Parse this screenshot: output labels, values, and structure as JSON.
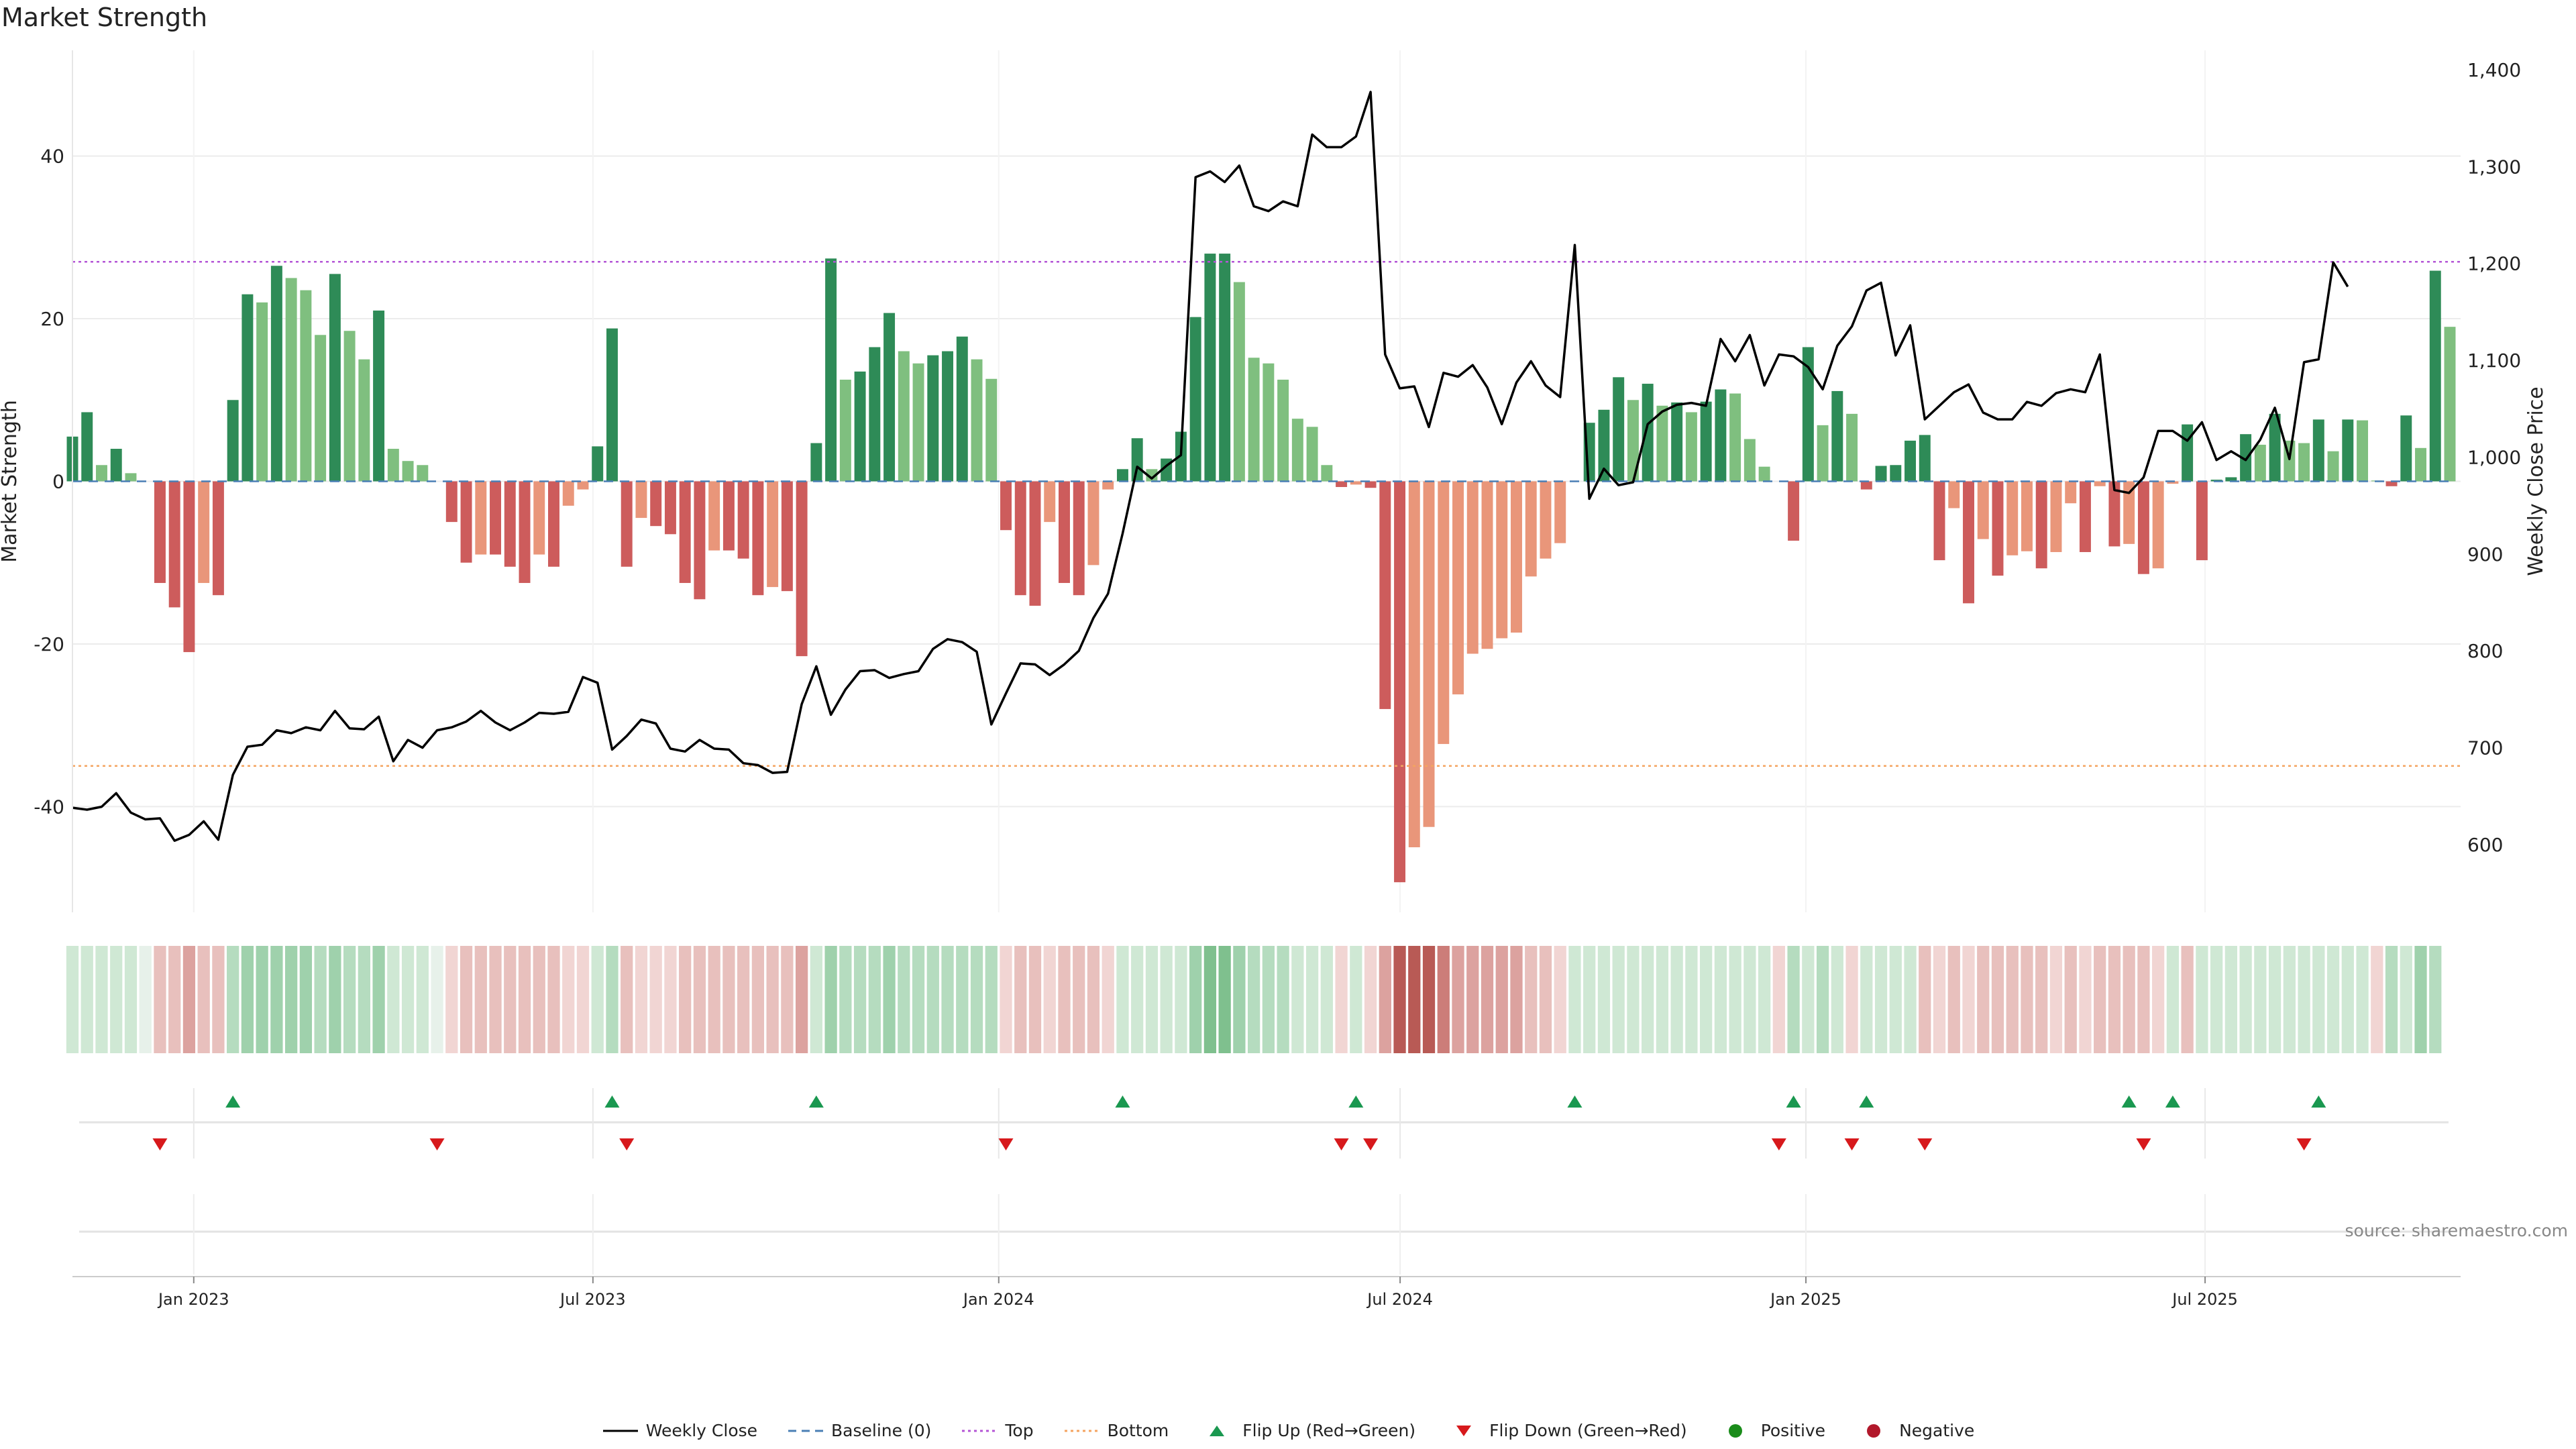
{
  "title": "Market Strength",
  "source": "source: sharemaestro.com",
  "colors": {
    "pos_strong": "#2e8b57",
    "pos_weak": "#7fbf7f",
    "neg_strong": "#cd5c5c",
    "neg_weak": "#e9967a",
    "price_line": "#000000",
    "baseline": "#4a7fb5",
    "top": "#b455d6",
    "bottom": "#f4a460",
    "flip_up": "#1a9850",
    "flip_down": "#d7191c",
    "positive_dot": "#1a8c1a",
    "negative_dot": "#b2182b"
  },
  "legend": [
    {
      "label": "Weekly Close",
      "kind": "line",
      "color": "#000000",
      "icon": "solid-line"
    },
    {
      "label": "Baseline (0)",
      "kind": "dash",
      "color": "#4a7fb5",
      "icon": "dashed-line"
    },
    {
      "label": "Top",
      "kind": "dot",
      "color": "#b455d6",
      "icon": "dotted-line"
    },
    {
      "label": "Bottom",
      "kind": "dot",
      "color": "#f4a460",
      "icon": "dotted-line"
    },
    {
      "label": "Flip Up (Red→Green)",
      "kind": "up",
      "color": "#1a9850",
      "icon": "triangle-up-icon"
    },
    {
      "label": "Flip Down (Green→Red)",
      "kind": "down",
      "color": "#d7191c",
      "icon": "triangle-down-icon"
    },
    {
      "label": "Positive",
      "kind": "circle",
      "color": "#1a8c1a",
      "icon": "circle-icon"
    },
    {
      "label": "Negative",
      "kind": "circle",
      "color": "#b2182b",
      "icon": "circle-icon"
    }
  ],
  "chart_data": {
    "type": "bar",
    "start_date": "2022-11-07",
    "end_date": "2025-10-20",
    "ylabel": "Market Strength",
    "y2label": "Weekly Close Price",
    "ylim": [
      -53,
      53
    ],
    "y2lim": [
      530,
      1420
    ],
    "yticks": [
      -40,
      -20,
      0,
      20,
      40
    ],
    "y2ticks": [
      600,
      700,
      800,
      900,
      1000,
      1100,
      1200,
      1300,
      1400
    ],
    "y2ticklabels": [
      "600",
      "700",
      "800",
      "900",
      "1,000",
      "1,100",
      "1,200",
      "1,300",
      "1,400"
    ],
    "xticks": [
      "Jan 2023",
      "Jul 2023",
      "Jan 2024",
      "Jul 2024",
      "Jan 2025",
      "Jul 2025"
    ],
    "xtick_dates": [
      "2023-01-01",
      "2023-07-01",
      "2024-01-01",
      "2024-07-01",
      "2025-01-01",
      "2025-07-01"
    ],
    "top_line": 27,
    "bottom_line": -35,
    "grid": true,
    "legend_position": "bottom-center",
    "strength": [
      5.5,
      8.5,
      2,
      4,
      1,
      0,
      -12.5,
      -15.5,
      -21,
      -12.5,
      -14,
      10,
      23,
      22,
      26.5,
      25,
      23.5,
      18,
      25.5,
      18.5,
      15,
      21,
      4,
      2.5,
      2,
      0,
      -5,
      -10,
      -9,
      -9,
      -10.5,
      -12.5,
      -9,
      -10.5,
      -3,
      -1,
      4.3,
      18.8,
      -10.5,
      -4.5,
      -5.5,
      -6.5,
      -12.5,
      -14.5,
      -8.5,
      -8.5,
      -9.5,
      -14,
      -13,
      -13.5,
      -21.5,
      4.7,
      27.4,
      12.5,
      13.5,
      16.5,
      20.7,
      16,
      14.5,
      15.5,
      16,
      17.8,
      15,
      12.6,
      -6,
      -14,
      -15.3,
      -5,
      -12.5,
      -14,
      -10.3,
      -1,
      1.5,
      5.3,
      1.5,
      2.8,
      6.1,
      20.2,
      28,
      28,
      24.5,
      15.2,
      14.5,
      12.5,
      7.7,
      6.7,
      2,
      -0.7,
      -0.4,
      -0.8,
      -28,
      -49.3,
      -45,
      -42.5,
      -32.3,
      -26.2,
      -21.2,
      -20.6,
      -19.3,
      -18.6,
      -11.7,
      -9.5,
      -7.6,
      0,
      7.2,
      8.8,
      12.8,
      10,
      12,
      9.3,
      9.7,
      8.5,
      9.8,
      11.3,
      10.8,
      5.2,
      1.8,
      0,
      -7.3,
      16.5,
      6.9,
      11.1,
      8.3,
      -1,
      1.9,
      2,
      5,
      5.7,
      -9.7,
      -3.3,
      -15,
      -7.1,
      -11.6,
      -9.1,
      -8.6,
      -10.7,
      -8.7,
      -2.7,
      -8.7,
      -0.6,
      -8,
      -7.7,
      -11.4,
      -10.7,
      -0.3,
      7,
      -9.7,
      0.2,
      0.5,
      5.8,
      4.5,
      8.3,
      5,
      4.7,
      7.6,
      3.7,
      7.6,
      7.5,
      0.1,
      -0.6,
      8.1,
      4.1,
      25.9,
      19
    ],
    "close": [
      638,
      636,
      639,
      653,
      633,
      626,
      627,
      604,
      610,
      624,
      605,
      672,
      701,
      703,
      718,
      715,
      721,
      718,
      738,
      720,
      719,
      732,
      686,
      708,
      700,
      718,
      721,
      727,
      738,
      726,
      718,
      726,
      736,
      735,
      737,
      773,
      767,
      698,
      712,
      729,
      725,
      699,
      696,
      708,
      699,
      698,
      684,
      682,
      674,
      675,
      745,
      784,
      734,
      760,
      779,
      780,
      772,
      776,
      779,
      802,
      812,
      809,
      799,
      724,
      756,
      787,
      786,
      775,
      786,
      800,
      834,
      859,
      921,
      990,
      978,
      991,
      1002,
      1289,
      1295,
      1284,
      1301,
      1259,
      1254,
      1264,
      1259,
      1333,
      1320,
      1320,
      1331,
      1377,
      1106,
      1071,
      1073,
      1031,
      1087,
      1083,
      1095,
      1072,
      1034,
      1077,
      1099,
      1074,
      1062,
      1219,
      957,
      988,
      971,
      974,
      1034,
      1047,
      1054,
      1056,
      1053,
      1122,
      1099,
      1126,
      1074,
      1106,
      1104,
      1093,
      1070,
      1115,
      1135,
      1172,
      1180,
      1105,
      1136,
      1039,
      1053,
      1067,
      1075,
      1046,
      1039,
      1039,
      1057,
      1053,
      1066,
      1070,
      1067,
      1106,
      966,
      963,
      979,
      1027,
      1027,
      1017,
      1036,
      997,
      1006,
      997,
      1018,
      1051,
      998,
      1098,
      1101,
      1201,
      1176
    ]
  },
  "mood_strip": [
    1,
    1,
    1,
    1,
    1,
    0,
    -2,
    -2,
    -3,
    -2,
    -2,
    2,
    3,
    3,
    3,
    3,
    3,
    2,
    3,
    2,
    2,
    3,
    1,
    1,
    1,
    0,
    -1,
    -2,
    -2,
    -2,
    -2,
    -2,
    -2,
    -2,
    -1,
    -1,
    1,
    2,
    -2,
    -1,
    -1,
    -1,
    -2,
    -2,
    -2,
    -2,
    -2,
    -2,
    -2,
    -2,
    -3,
    1,
    3,
    2,
    2,
    2,
    3,
    2,
    2,
    2,
    2,
    2,
    2,
    2,
    -1,
    -2,
    -2,
    -1,
    -2,
    -2,
    -2,
    -1,
    1,
    1,
    1,
    1,
    1,
    3,
    4,
    4,
    3,
    2,
    2,
    2,
    1,
    1,
    1,
    -1,
    1,
    -1,
    -3,
    -5,
    -5,
    -5,
    -4,
    -3,
    -3,
    -3,
    -3,
    -3,
    -2,
    -2,
    -1,
    1,
    1,
    1,
    1,
    1,
    1,
    1,
    1,
    1,
    1,
    1,
    1,
    1,
    1,
    -1,
    2,
    1,
    2,
    1,
    -1,
    1,
    1,
    1,
    1,
    -2,
    -1,
    -2,
    -1,
    -2,
    -2,
    -2,
    -2,
    -2,
    -1,
    -2,
    -1,
    -2,
    -2,
    -2,
    -2,
    -1,
    1,
    -2,
    1,
    1,
    1,
    1,
    1,
    1,
    1,
    1,
    1,
    1,
    1,
    1,
    -1,
    2,
    1,
    3,
    2
  ],
  "flips_up": [
    11,
    37,
    51,
    72,
    88,
    103,
    118,
    123,
    141,
    144,
    154
  ],
  "flips_down": [
    6,
    25,
    38,
    64,
    87,
    89,
    117,
    122,
    127,
    142,
    153
  ]
}
